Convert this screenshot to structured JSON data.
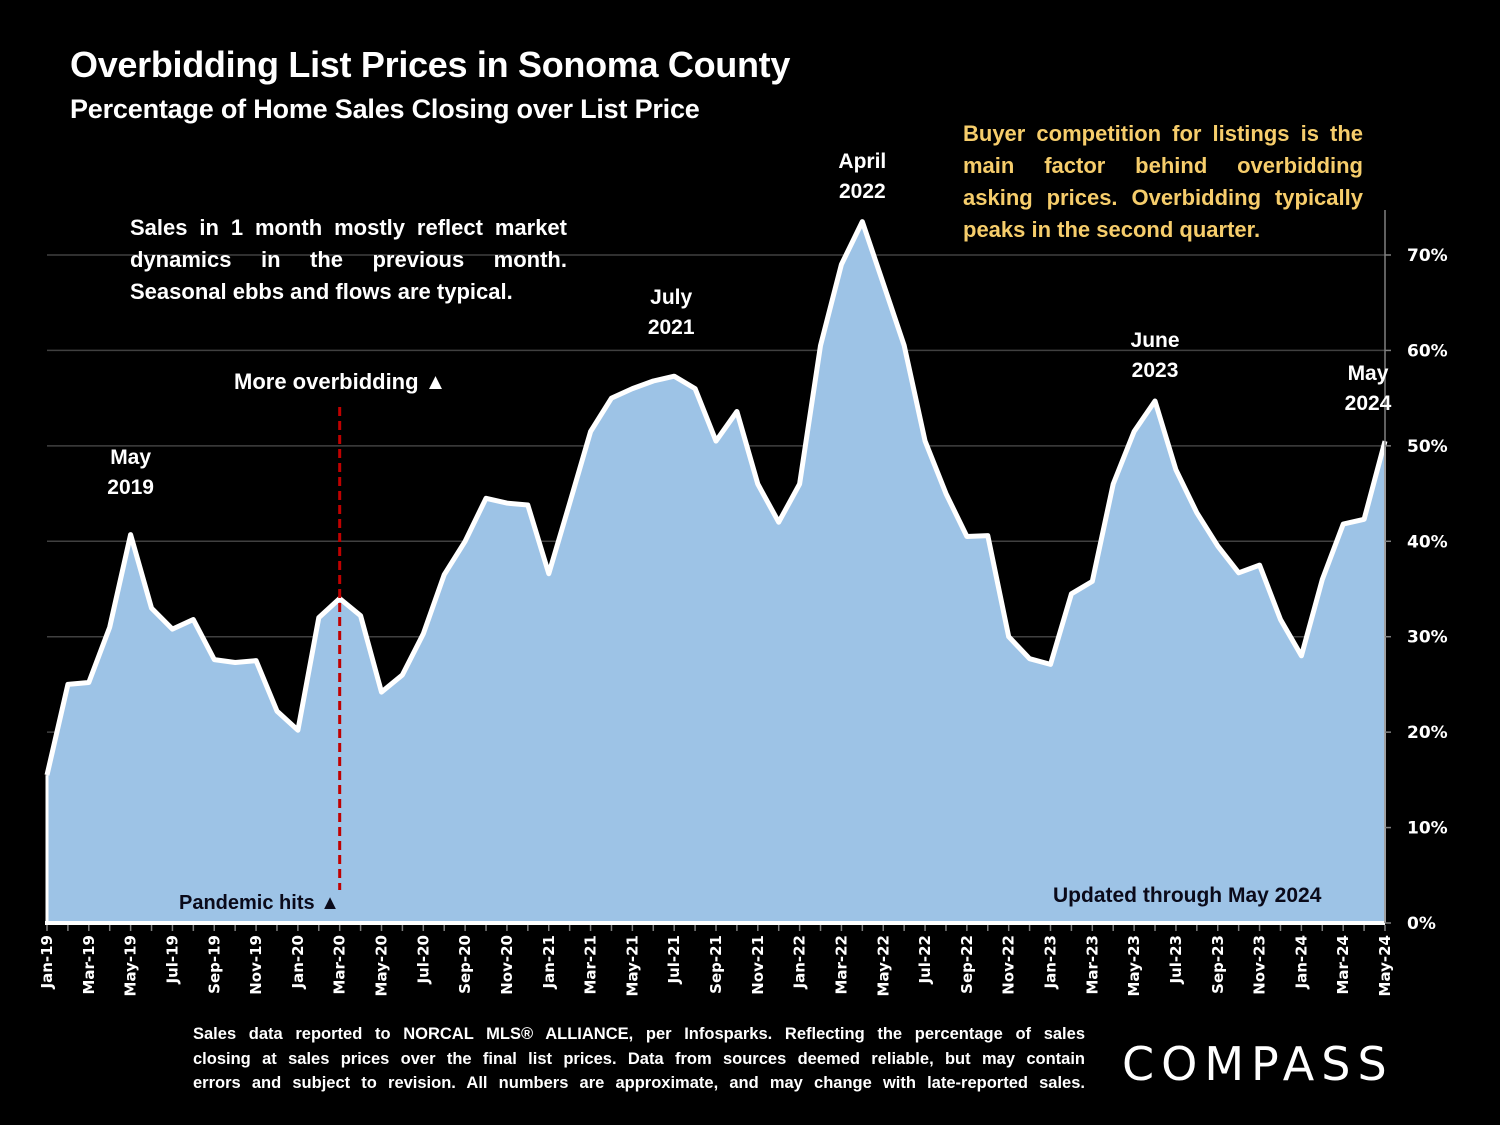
{
  "header": {
    "title": "Overbidding List Prices in Sonoma County",
    "subtitle": "Percentage of Home Sales Closing over List Price"
  },
  "annotations": {
    "left_note": "Sales in 1 month mostly reflect market dynamics in the previous month. Seasonal ebbs and flows are typical.",
    "right_note": "Buyer competition for listings is the main factor behind overbidding asking prices. Overbidding typically peaks in the second quarter.",
    "more_overbidding": "More overbidding ▲",
    "pandemic_hits": "Pandemic hits ▲",
    "updated": "Updated through May 2024",
    "peaks": [
      {
        "line1": "May",
        "line2": "2019",
        "month": "May-19"
      },
      {
        "line1": "July",
        "line2": "2021",
        "month": "Jul-21"
      },
      {
        "line1": "April",
        "line2": "2022",
        "month": "Apr-22"
      },
      {
        "line1": "June",
        "line2": "2023",
        "month": "Jun-23"
      },
      {
        "line1": "May",
        "line2": "2024",
        "month": "May-24"
      }
    ]
  },
  "footer": {
    "disclaimer_lines": [
      "Sales data reported to NORCAL MLS® ALLIANCE, per Infosparks. Reflecting the percentage of sales",
      "closing at sales prices over the final list prices. Data from sources deemed reliable, but may contain",
      "errors and subject to revision. All numbers are approximate, and may change with late-reported sales."
    ],
    "logo": "COMPASS"
  },
  "colors": {
    "background": "#000000",
    "area_fill": "#9dc3e6",
    "line": "#ffffff",
    "pandemic_marker": "#c00000",
    "right_note_text": "#f6cd6b",
    "gridline": "#404040"
  },
  "chart_data": {
    "type": "area",
    "title": "Overbidding List Prices in Sonoma County",
    "subtitle": "Percentage of Home Sales Closing over List Price",
    "xlabel": "",
    "ylabel": "",
    "y_axis_position": "right",
    "ylim": [
      0,
      75
    ],
    "yticks": [
      0,
      10,
      20,
      30,
      40,
      50,
      60,
      70
    ],
    "ytick_labels": [
      "0%",
      "10%",
      "20%",
      "30%",
      "40%",
      "50%",
      "60%",
      "70%"
    ],
    "grid": true,
    "x_tick_labels": [
      "Jan-19",
      "Mar-19",
      "May-19",
      "Jul-19",
      "Sep-19",
      "Nov-19",
      "Jan-20",
      "Mar-20",
      "May-20",
      "Jul-20",
      "Sep-20",
      "Nov-20",
      "Jan-21",
      "Mar-21",
      "May-21",
      "Jul-21",
      "Sep-21",
      "Nov-21",
      "Jan-22",
      "Mar-22",
      "May-22",
      "Jul-22",
      "Sep-22",
      "Nov-22",
      "Jan-23",
      "Mar-23",
      "May-23",
      "Jul-23",
      "Sep-23",
      "Nov-23",
      "Jan-24",
      "Mar-24",
      "May-24"
    ],
    "x": [
      "Jan-19",
      "Feb-19",
      "Mar-19",
      "Apr-19",
      "May-19",
      "Jun-19",
      "Jul-19",
      "Aug-19",
      "Sep-19",
      "Oct-19",
      "Nov-19",
      "Dec-19",
      "Jan-20",
      "Feb-20",
      "Mar-20",
      "Apr-20",
      "May-20",
      "Jun-20",
      "Jul-20",
      "Aug-20",
      "Sep-20",
      "Oct-20",
      "Nov-20",
      "Dec-20",
      "Jan-21",
      "Feb-21",
      "Mar-21",
      "Apr-21",
      "May-21",
      "Jun-21",
      "Jul-21",
      "Aug-21",
      "Sep-21",
      "Oct-21",
      "Nov-21",
      "Dec-21",
      "Jan-22",
      "Feb-22",
      "Mar-22",
      "Apr-22",
      "May-22",
      "Jun-22",
      "Jul-22",
      "Aug-22",
      "Sep-22",
      "Oct-22",
      "Nov-22",
      "Dec-22",
      "Jan-23",
      "Feb-23",
      "Mar-23",
      "Apr-23",
      "May-23",
      "Jun-23",
      "Jul-23",
      "Aug-23",
      "Sep-23",
      "Oct-23",
      "Nov-23",
      "Dec-23",
      "Jan-24",
      "Feb-24",
      "Mar-24",
      "Apr-24",
      "May-24"
    ],
    "series": [
      {
        "name": "Percentage of Home Sales Closing over List Price",
        "values": [
          15.5,
          25.0,
          25.2,
          31.0,
          40.7,
          33.0,
          30.8,
          31.8,
          27.6,
          27.3,
          27.5,
          22.2,
          20.2,
          32.0,
          34.0,
          32.2,
          24.2,
          26.0,
          30.3,
          36.5,
          40.0,
          44.5,
          44.0,
          43.8,
          36.6,
          44.0,
          51.5,
          55.0,
          56.0,
          56.8,
          57.3,
          56.0,
          50.5,
          53.6,
          46.0,
          42.0,
          46.0,
          60.5,
          69.0,
          73.5,
          67.0,
          60.5,
          50.5,
          45.0,
          40.5,
          40.6,
          30.0,
          27.7,
          27.1,
          34.5,
          35.8,
          46.0,
          51.5,
          54.7,
          47.5,
          43.0,
          39.5,
          36.7,
          37.5,
          31.8,
          28.0,
          36.0,
          41.8,
          42.3,
          50.5
        ]
      }
    ],
    "markers": [
      {
        "type": "vertical-dashed-line",
        "x": "Mar-20",
        "label": "Pandemic hits"
      }
    ]
  }
}
